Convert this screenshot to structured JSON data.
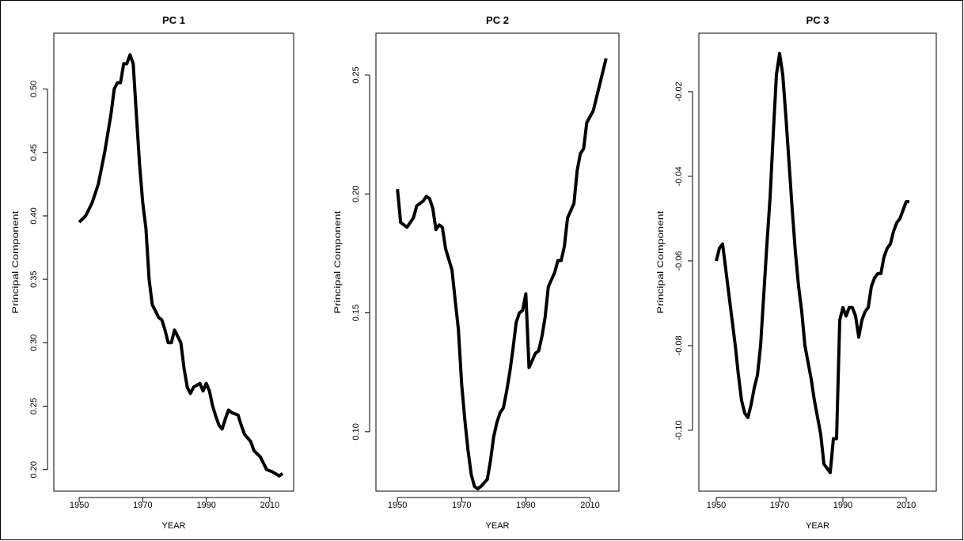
{
  "chart_data": [
    {
      "type": "line",
      "title": "PC 1",
      "x_label": "YEAR",
      "y_label": "Principal Component",
      "color": "#000000",
      "x": [
        1950,
        1952,
        1954,
        1956,
        1958,
        1960,
        1961,
        1962,
        1963,
        1964,
        1965,
        1966,
        1967,
        1968,
        1969,
        1970,
        1971,
        1972,
        1973,
        1974,
        1975,
        1976,
        1977,
        1978,
        1979,
        1980,
        1981,
        1982,
        1983,
        1984,
        1985,
        1986,
        1988,
        1989,
        1990,
        1991,
        1992,
        1993,
        1994,
        1995,
        1996,
        1997,
        1998,
        2000,
        2001,
        2002,
        2004,
        2005,
        2007,
        2008,
        2009,
        2011,
        2013,
        2014
      ],
      "values": [
        0.395,
        0.4,
        0.41,
        0.425,
        0.45,
        0.48,
        0.5,
        0.505,
        0.505,
        0.52,
        0.52,
        0.527,
        0.52,
        0.48,
        0.44,
        0.41,
        0.39,
        0.35,
        0.33,
        0.325,
        0.32,
        0.318,
        0.31,
        0.3,
        0.3,
        0.31,
        0.305,
        0.3,
        0.28,
        0.265,
        0.26,
        0.265,
        0.268,
        0.262,
        0.268,
        0.262,
        0.25,
        0.242,
        0.235,
        0.232,
        0.24,
        0.247,
        0.245,
        0.243,
        0.235,
        0.228,
        0.222,
        0.215,
        0.21,
        0.205,
        0.2,
        0.198,
        0.195,
        0.197
      ],
      "xlim": [
        1942,
        2017.5
      ],
      "ylim": [
        0.183,
        0.544
      ],
      "xticks": [
        1950,
        1970,
        1990,
        2010
      ],
      "yticks": [
        {
          "value": 0.2,
          "label": "0.20"
        },
        0.25,
        {
          "value": 0.3,
          "label": "0.30"
        },
        0.35,
        {
          "value": 0.4,
          "label": "0.40"
        },
        0.45,
        {
          "value": 0.5,
          "label": "0.50"
        }
      ]
    },
    {
      "type": "line",
      "title": "PC 2",
      "x_label": "YEAR",
      "y_label": "Principal Component",
      "color": "#000000",
      "x": [
        1950,
        1951,
        1953,
        1955,
        1956,
        1958,
        1959,
        1960,
        1961,
        1962,
        1963,
        1964,
        1965,
        1967,
        1968,
        1969,
        1970,
        1971,
        1972,
        1973,
        1974,
        1975,
        1976,
        1978,
        1979,
        1980,
        1981,
        1982,
        1983,
        1984,
        1985,
        1986,
        1987,
        1988,
        1989,
        1990,
        1991,
        1992,
        1993,
        1994,
        1995,
        1996,
        1997,
        1998,
        1999,
        2000,
        2001,
        2002,
        2003,
        2004,
        2005,
        2006,
        2007,
        2008,
        2009,
        2011,
        2013,
        2015
      ],
      "values": [
        0.202,
        0.188,
        0.186,
        0.19,
        0.195,
        0.197,
        0.199,
        0.198,
        0.194,
        0.185,
        0.187,
        0.186,
        0.177,
        0.168,
        0.155,
        0.143,
        0.12,
        0.105,
        0.092,
        0.082,
        0.077,
        0.076,
        0.077,
        0.08,
        0.088,
        0.098,
        0.104,
        0.108,
        0.11,
        0.117,
        0.125,
        0.135,
        0.146,
        0.15,
        0.151,
        0.158,
        0.127,
        0.13,
        0.133,
        0.134,
        0.14,
        0.148,
        0.161,
        0.164,
        0.167,
        0.172,
        0.172,
        0.178,
        0.19,
        0.193,
        0.196,
        0.21,
        0.217,
        0.219,
        0.23,
        0.235,
        0.246,
        0.257
      ],
      "xlim": [
        1943.3,
        2019
      ],
      "ylim": [
        0.075,
        0.2676
      ],
      "xticks": [
        1950,
        1970,
        1990,
        2010
      ],
      "yticks": [
        {
          "value": 0.1,
          "label": "0.10"
        },
        0.15,
        {
          "value": 0.2,
          "label": "0.20"
        },
        0.25
      ]
    },
    {
      "type": "line",
      "title": "PC 3",
      "x_label": "YEAR",
      "y_label": "Principal Component",
      "color": "#000000",
      "x": [
        1950,
        1951,
        1952,
        1953,
        1954,
        1955,
        1956,
        1957,
        1958,
        1959,
        1960,
        1961,
        1962,
        1963,
        1964,
        1965,
        1966,
        1967,
        1968,
        1969,
        1970,
        1971,
        1972,
        1973,
        1974,
        1975,
        1976,
        1977,
        1978,
        1979,
        1980,
        1981,
        1982,
        1983,
        1984,
        1985,
        1986,
        1987,
        1988,
        1989,
        1990,
        1991,
        1992,
        1993,
        1994,
        1995,
        1996,
        1997,
        1998,
        1999,
        2000,
        2001,
        2002,
        2003,
        2004,
        2005,
        2006,
        2007,
        2008,
        2009,
        2010,
        2011
      ],
      "values": [
        -0.06,
        -0.057,
        -0.056,
        -0.062,
        -0.068,
        -0.074,
        -0.08,
        -0.087,
        -0.093,
        -0.096,
        -0.097,
        -0.094,
        -0.09,
        -0.087,
        -0.08,
        -0.068,
        -0.056,
        -0.045,
        -0.03,
        -0.016,
        -0.011,
        -0.016,
        -0.026,
        -0.037,
        -0.048,
        -0.058,
        -0.066,
        -0.072,
        -0.08,
        -0.084,
        -0.088,
        -0.093,
        -0.097,
        -0.101,
        -0.108,
        -0.109,
        -0.11,
        -0.102,
        -0.102,
        -0.074,
        -0.071,
        -0.073,
        -0.071,
        -0.071,
        -0.073,
        -0.078,
        -0.074,
        -0.072,
        -0.071,
        -0.066,
        -0.064,
        -0.063,
        -0.063,
        -0.059,
        -0.057,
        -0.056,
        -0.053,
        -0.051,
        -0.05,
        -0.048,
        -0.046,
        -0.046
      ],
      "xlim": [
        1944.5,
        2019.5
      ],
      "ylim": [
        -0.1144,
        -0.0062
      ],
      "xticks": [
        1950,
        1970,
        1990,
        2010
      ],
      "yticks": [
        {
          "value": -0.1,
          "label": "-0.10"
        },
        -0.08,
        -0.06,
        -0.04,
        -0.02
      ]
    }
  ]
}
